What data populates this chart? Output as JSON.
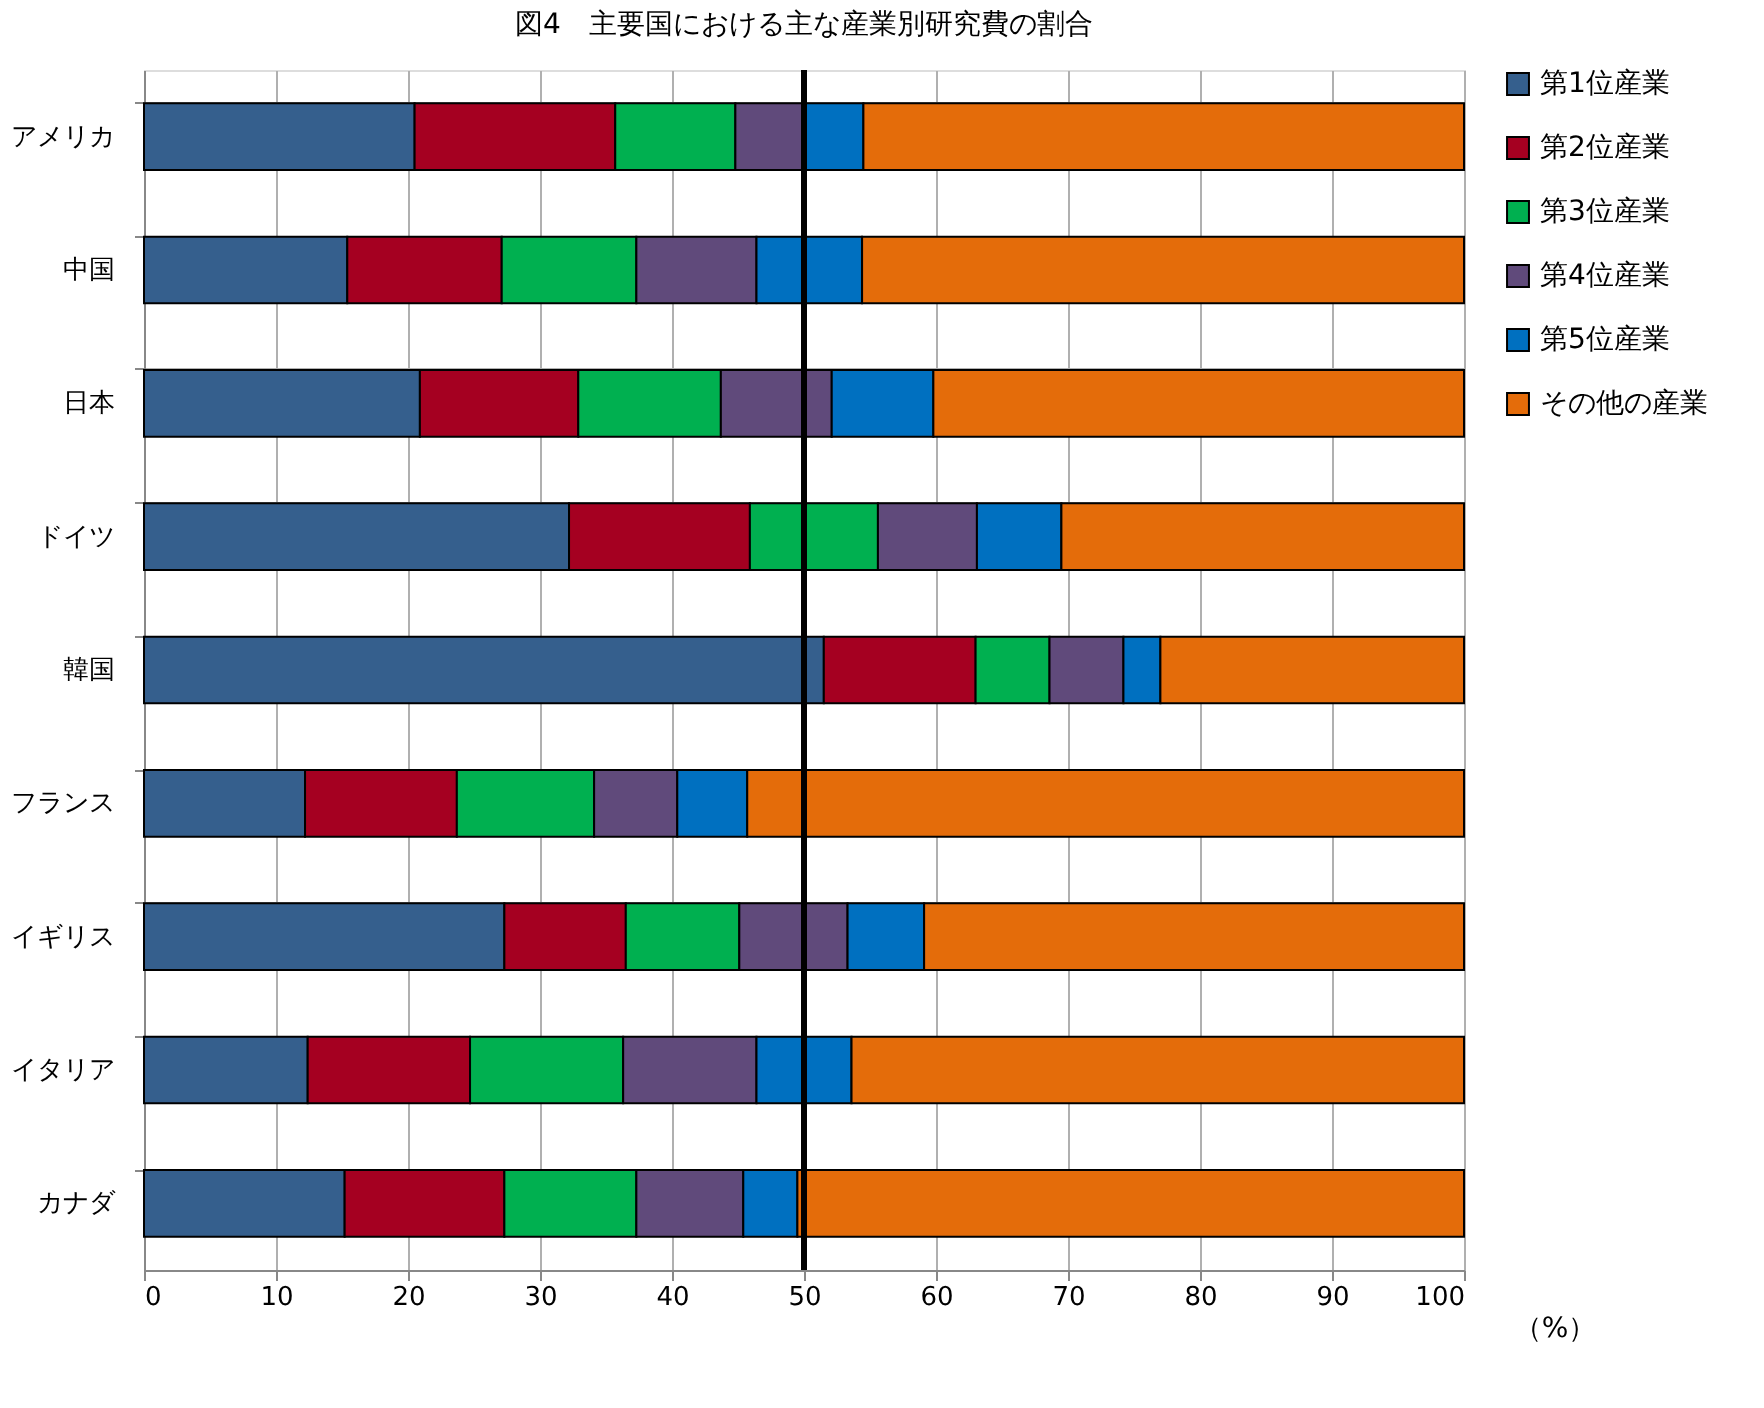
{
  "chart_data": {
    "type": "bar",
    "orientation": "horizontal",
    "stacked": true,
    "title": "図4　主要国における主な産業別研究費の割合",
    "xlabel": "（%）",
    "categories": [
      "アメリカ",
      "中国",
      "日本",
      "ドイツ",
      "韓国",
      "フランス",
      "イギリス",
      "イタリア",
      "カナダ"
    ],
    "series": [
      {
        "name": "第1位産業",
        "color": "#355f8d",
        "values": [
          20.5,
          15.4,
          20.9,
          32.2,
          51.5,
          12.2,
          27.3,
          12.4,
          15.2
        ]
      },
      {
        "name": "第2位産業",
        "color": "#a50021",
        "values": [
          15.2,
          11.7,
          12.0,
          13.7,
          11.5,
          11.5,
          9.2,
          12.3,
          12.1
        ]
      },
      {
        "name": "第3位産業",
        "color": "#00b050",
        "values": [
          9.1,
          10.2,
          10.8,
          9.7,
          5.6,
          10.4,
          8.6,
          11.6,
          10.0
        ]
      },
      {
        "name": "第4位産業",
        "color": "#604a7b",
        "values": [
          5.1,
          9.1,
          8.4,
          7.5,
          5.6,
          6.3,
          8.2,
          10.1,
          8.1
        ]
      },
      {
        "name": "第5位産業",
        "color": "#0070c0",
        "values": [
          4.6,
          8.0,
          7.7,
          6.4,
          2.8,
          5.3,
          5.8,
          7.2,
          4.1
        ]
      },
      {
        "name": "その他の産業",
        "color": "#e46c0a",
        "values": [
          45.5,
          45.6,
          40.2,
          30.5,
          23.0,
          54.3,
          40.9,
          46.4,
          50.5
        ]
      }
    ],
    "xlim": [
      0,
      100
    ],
    "xticks": [
      0,
      10,
      20,
      30,
      40,
      50,
      60,
      70,
      80,
      90,
      100
    ],
    "ref_lines": [
      {
        "axis": "x",
        "value": 50,
        "color": "#000000"
      }
    ],
    "grid": true,
    "legend": "right"
  }
}
